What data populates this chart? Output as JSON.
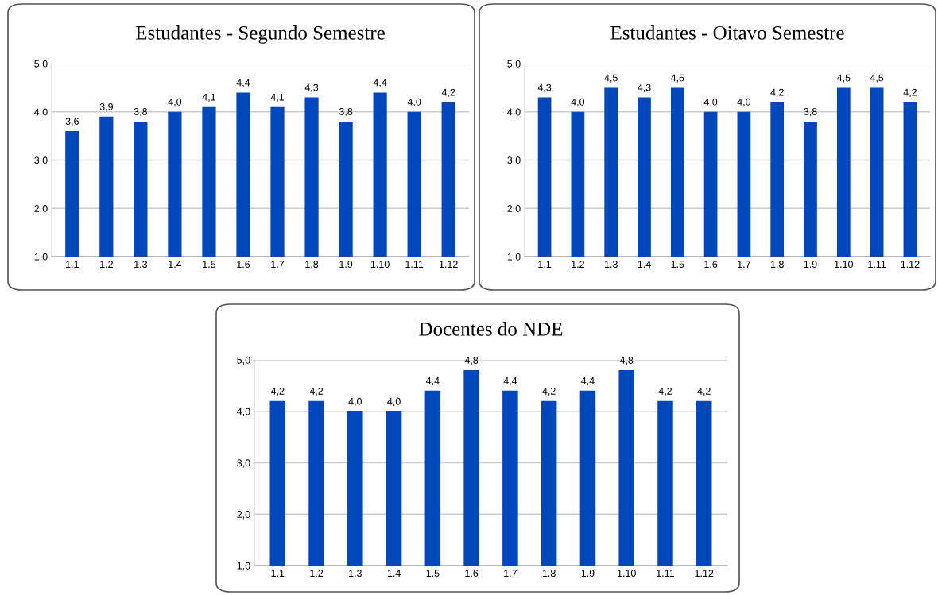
{
  "chart_data": [
    {
      "type": "bar",
      "title": "Estudantes - Segundo Semestre",
      "categories": [
        "1.1",
        "1.2",
        "1.3",
        "1.4",
        "1.5",
        "1.6",
        "1.7",
        "1.8",
        "1.9",
        "1.10",
        "1.11",
        "1.12"
      ],
      "values": [
        3.6,
        3.9,
        3.8,
        4.0,
        4.1,
        4.4,
        4.1,
        4.3,
        3.8,
        4.4,
        4.0,
        4.2
      ],
      "value_labels": [
        "3,6",
        "3,9",
        "3,8",
        "4,0",
        "4,1",
        "4,4",
        "4,1",
        "4,3",
        "3,8",
        "4,4",
        "4,0",
        "4,2"
      ],
      "color": "#0047bb",
      "ylim": [
        1,
        5
      ],
      "yticks": [
        {
          "value": 1,
          "label": "1,0"
        },
        {
          "value": 2,
          "label": "2,0"
        },
        {
          "value": 3,
          "label": "3,0"
        },
        {
          "value": 4,
          "label": "4,0"
        },
        {
          "value": 5,
          "label": "5,0"
        }
      ],
      "grid": "y"
    },
    {
      "type": "bar",
      "title": "Estudantes - Oitavo Semestre",
      "categories": [
        "1.1",
        "1.2",
        "1.3",
        "1.4",
        "1.5",
        "1.6",
        "1.7",
        "1.8",
        "1.9",
        "1.10",
        "1.11",
        "1.12"
      ],
      "values": [
        4.3,
        4.0,
        4.5,
        4.3,
        4.5,
        4.0,
        4.0,
        4.2,
        3.8,
        4.5,
        4.5,
        4.2
      ],
      "value_labels": [
        "4,3",
        "4,0",
        "4,5",
        "4,3",
        "4,5",
        "4,0",
        "4,0",
        "4,2",
        "3,8",
        "4,5",
        "4,5",
        "4,2"
      ],
      "color": "#0047bb",
      "ylim": [
        1,
        5
      ],
      "yticks": [
        {
          "value": 1,
          "label": "1,0"
        },
        {
          "value": 2,
          "label": "2,0"
        },
        {
          "value": 3,
          "label": "3,0"
        },
        {
          "value": 4,
          "label": "4,0"
        },
        {
          "value": 5,
          "label": "5,0"
        }
      ],
      "grid": "y"
    },
    {
      "type": "bar",
      "title": "Docentes do NDE",
      "categories": [
        "1.1",
        "1.2",
        "1.3",
        "1.4",
        "1.5",
        "1.6",
        "1.7",
        "1.8",
        "1.9",
        "1.10",
        "1.11",
        "1.12"
      ],
      "values": [
        4.2,
        4.2,
        4.0,
        4.0,
        4.4,
        4.8,
        4.4,
        4.2,
        4.4,
        4.8,
        4.2,
        4.2
      ],
      "value_labels": [
        "4,2",
        "4,2",
        "4,0",
        "4,0",
        "4,4",
        "4,8",
        "4,4",
        "4,2",
        "4,4",
        "4,8",
        "4,2",
        "4,2"
      ],
      "color": "#0047bb",
      "ylim": [
        1,
        5
      ],
      "yticks": [
        {
          "value": 1,
          "label": "1,0"
        },
        {
          "value": 2,
          "label": "2,0"
        },
        {
          "value": 3,
          "label": "3,0"
        },
        {
          "value": 4,
          "label": "4,0"
        },
        {
          "value": 5,
          "label": "5,0"
        }
      ],
      "grid": "y"
    }
  ]
}
